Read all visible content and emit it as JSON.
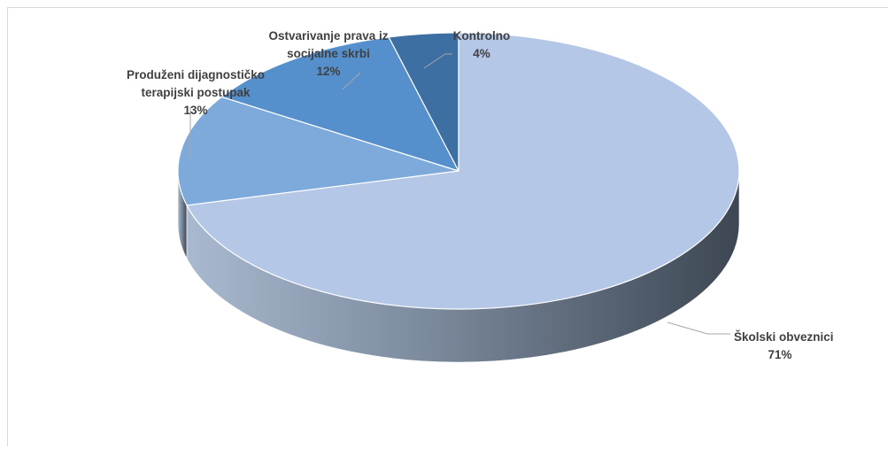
{
  "chart_data": {
    "type": "pie",
    "title": "",
    "style": "3d",
    "slices": [
      {
        "lines": [
          "Školski obveznici",
          "71%"
        ],
        "value": 71,
        "color": "#b4c7e7",
        "side_color": "#5a6a7e"
      },
      {
        "lines": [
          "Produženi dijagnostičko",
          "terapijski postupak",
          "13%"
        ],
        "value": 13,
        "color": "#7eaadb",
        "side_color": "#4f6f96"
      },
      {
        "lines": [
          "Ostvarivanje prava iz",
          "socijalne skrbi",
          "12%"
        ],
        "value": 12,
        "color": "#5590cc",
        "side_color": "#3a648f"
      },
      {
        "lines": [
          "Kontrolno",
          "4%"
        ],
        "value": 4,
        "color": "#3d6fa3",
        "side_color": "#2b4f75"
      }
    ]
  }
}
